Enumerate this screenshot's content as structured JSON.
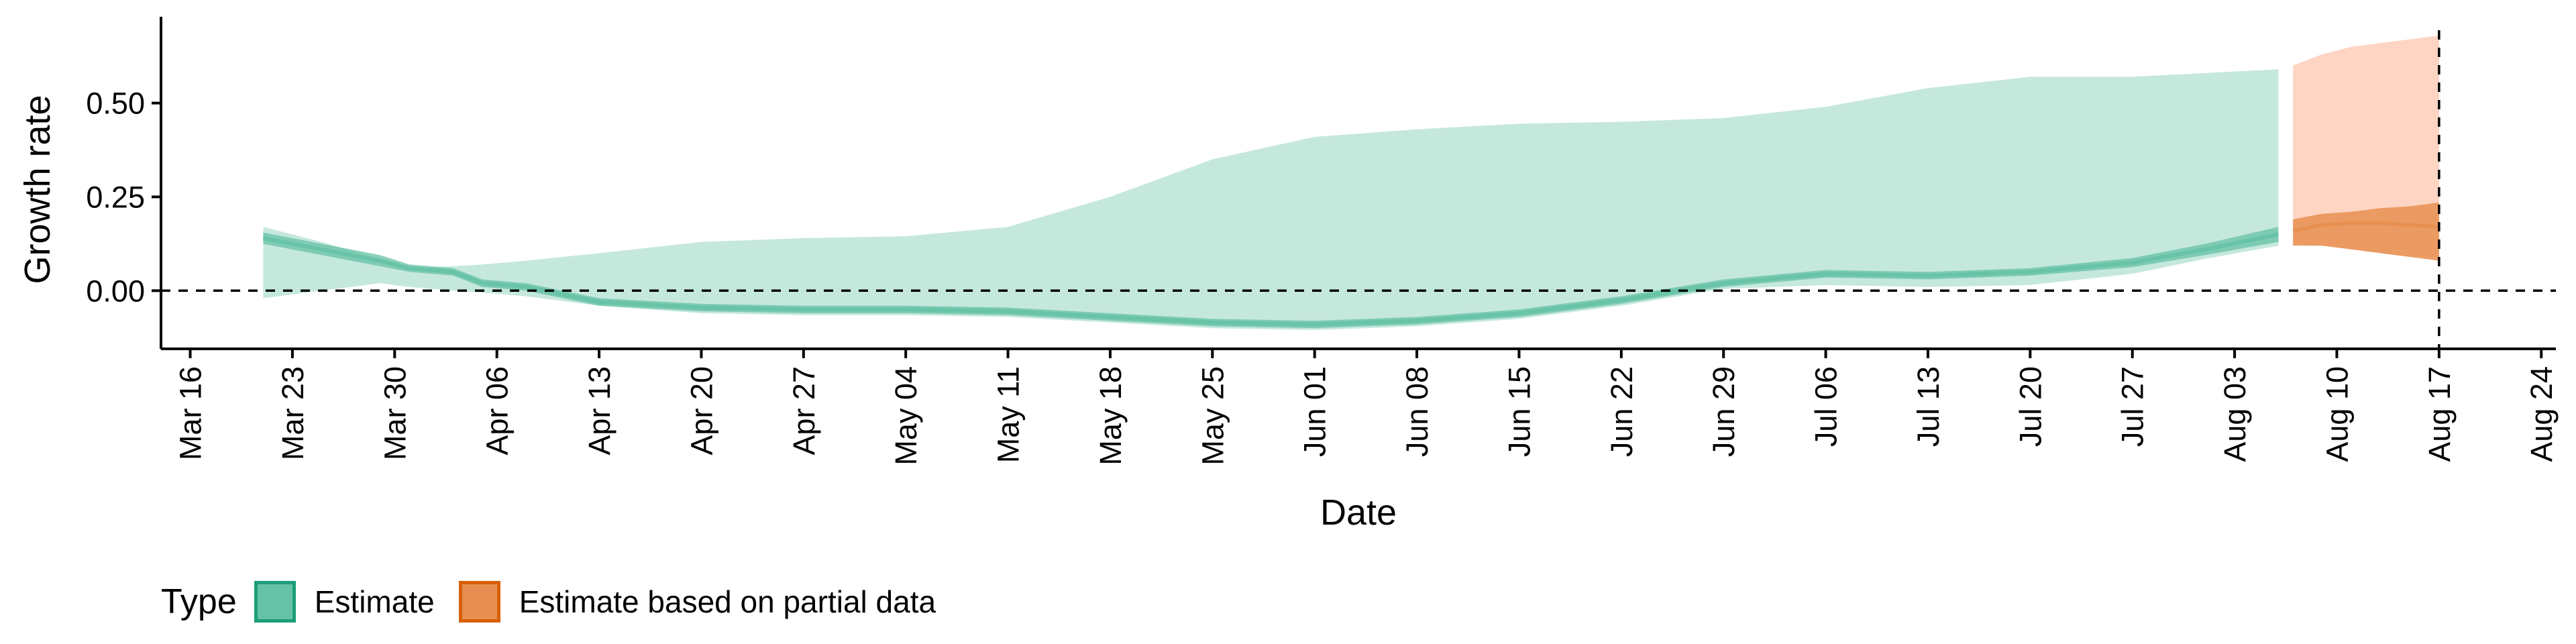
{
  "chart_data": {
    "type": "area",
    "title": "",
    "xlabel": "Date",
    "ylabel": "Growth rate",
    "x_tick_labels": [
      "Mar 16",
      "Mar 23",
      "Mar 30",
      "Apr 06",
      "Apr 13",
      "Apr 20",
      "Apr 27",
      "May 04",
      "May 11",
      "May 18",
      "May 25",
      "Jun 01",
      "Jun 08",
      "Jun 15",
      "Jun 22",
      "Jun 29",
      "Jul 06",
      "Jul 13",
      "Jul 20",
      "Jul 27",
      "Aug 03",
      "Aug 10",
      "Aug 17",
      "Aug 24"
    ],
    "x_range": [
      "2020-03-14",
      "2020-08-25"
    ],
    "y_ticks": [
      "0.00",
      "0.25",
      "0.50"
    ],
    "y_tick_values": [
      0,
      0.25,
      0.5
    ],
    "ylim": [
      -0.155,
      0.73
    ],
    "reference_lines": {
      "horizontal_y": 0,
      "vertical_date": "2020-08-17"
    },
    "grid": false,
    "legend": {
      "title": "Type",
      "position": "bottom-left",
      "entries": [
        "Estimate",
        "Estimate based on partial data"
      ]
    },
    "colors": {
      "estimate": "#66c2a5",
      "estimate_border": "#1b9e77",
      "partial": "#fc8d62",
      "partial_fill": "#e78f50",
      "partial_border": "#d95f02"
    },
    "series": [
      {
        "name": "Estimate",
        "x": [
          "2020-03-21",
          "2020-03-25",
          "2020-03-29",
          "2020-03-31",
          "2020-04-03",
          "2020-04-05",
          "2020-04-08",
          "2020-04-13",
          "2020-04-20",
          "2020-04-27",
          "2020-05-04",
          "2020-05-11",
          "2020-05-18",
          "2020-05-25",
          "2020-06-01",
          "2020-06-08",
          "2020-06-15",
          "2020-06-22",
          "2020-06-29",
          "2020-07-06",
          "2020-07-13",
          "2020-07-20",
          "2020-07-27",
          "2020-08-01",
          "2020-08-06"
        ],
        "median": [
          0.14,
          0.11,
          0.08,
          0.06,
          0.05,
          0.02,
          0.01,
          -0.03,
          -0.045,
          -0.05,
          -0.05,
          -0.055,
          -0.07,
          -0.085,
          -0.09,
          -0.08,
          -0.06,
          -0.025,
          0.02,
          0.045,
          0.04,
          0.05,
          0.075,
          0.11,
          0.15
        ],
        "inner_lower": [
          0.125,
          0.095,
          0.065,
          0.05,
          0.04,
          0.01,
          0.0,
          -0.04,
          -0.055,
          -0.06,
          -0.06,
          -0.065,
          -0.08,
          -0.095,
          -0.1,
          -0.09,
          -0.07,
          -0.035,
          0.01,
          0.035,
          0.03,
          0.04,
          0.063,
          0.095,
          0.13
        ],
        "inner_upper": [
          0.155,
          0.125,
          0.095,
          0.07,
          0.06,
          0.03,
          0.02,
          -0.02,
          -0.035,
          -0.04,
          -0.04,
          -0.045,
          -0.06,
          -0.075,
          -0.08,
          -0.07,
          -0.05,
          -0.015,
          0.03,
          0.055,
          0.05,
          0.06,
          0.087,
          0.125,
          0.17
        ],
        "outer_lower": [
          -0.02,
          0.0,
          0.02,
          0.01,
          0.0,
          -0.005,
          -0.015,
          -0.04,
          -0.06,
          -0.065,
          -0.065,
          -0.07,
          -0.085,
          -0.1,
          -0.105,
          -0.095,
          -0.075,
          -0.04,
          0.005,
          0.015,
          0.01,
          0.015,
          0.045,
          0.085,
          0.12
        ],
        "outer_upper": [
          0.17,
          0.13,
          0.085,
          0.06,
          0.065,
          0.07,
          0.08,
          0.1,
          0.13,
          0.14,
          0.145,
          0.17,
          0.25,
          0.35,
          0.41,
          0.43,
          0.445,
          0.45,
          0.46,
          0.49,
          0.54,
          0.57,
          0.57,
          0.58,
          0.59
        ]
      },
      {
        "name": "Estimate based on partial data",
        "x": [
          "2020-08-07",
          "2020-08-09",
          "2020-08-11",
          "2020-08-13",
          "2020-08-15",
          "2020-08-17"
        ],
        "median": [
          0.16,
          0.175,
          0.18,
          0.18,
          0.175,
          0.17
        ],
        "inner_lower": [
          0.12,
          0.12,
          0.11,
          0.1,
          0.09,
          0.08
        ],
        "inner_upper": [
          0.19,
          0.205,
          0.21,
          0.22,
          0.225,
          0.235
        ],
        "outer_lower": [
          0.125,
          0.12,
          0.11,
          0.1,
          0.09,
          0.09
        ],
        "outer_upper": [
          0.6,
          0.63,
          0.65,
          0.66,
          0.67,
          0.68
        ]
      }
    ]
  }
}
